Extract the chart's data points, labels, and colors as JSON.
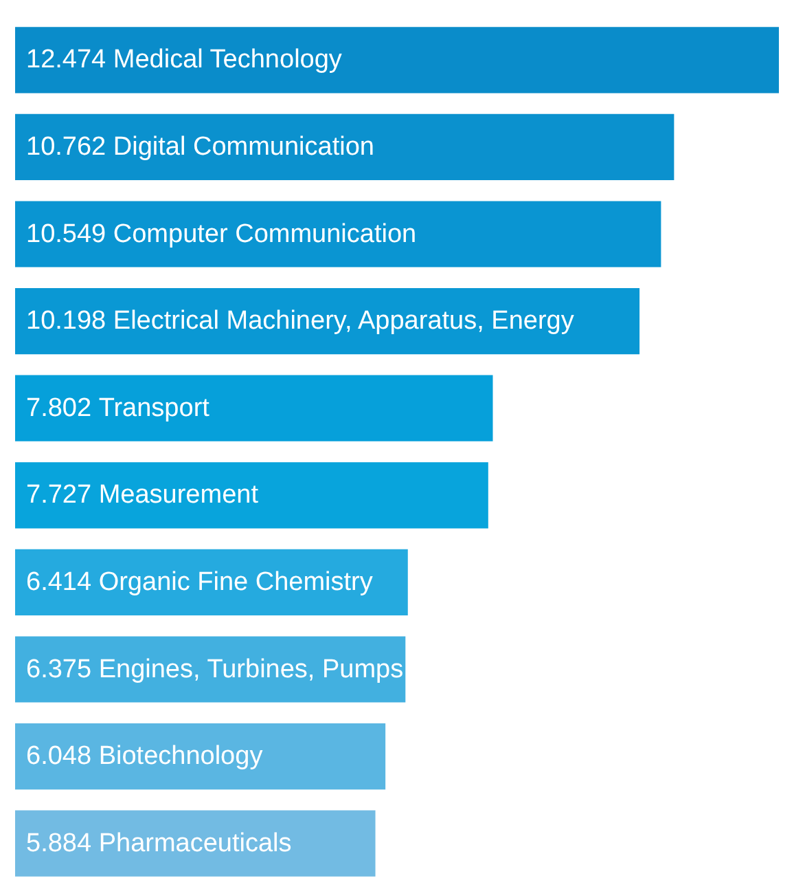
{
  "chart_data": {
    "type": "bar",
    "orientation": "horizontal",
    "data_labels": true,
    "tick_labels": false,
    "categories": [
      "Medical Technology",
      "Digital Communication",
      "Computer Communication",
      "Electrical Machinery, Apparatus, Energy",
      "Transport",
      "Measurement",
      "Organic Fine Chemistry",
      "Engines, Turbines, Pumps",
      "Biotechnology",
      "Pharmaceuticals"
    ],
    "values": [
      12.474,
      10.762,
      10.549,
      10.198,
      7.802,
      7.727,
      6.414,
      6.375,
      6.048,
      5.884
    ],
    "colors": [
      "#0a8cca",
      "#0b91ce",
      "#0a95d2",
      "#0a98d4",
      "#06a0da",
      "#08a4dc",
      "#25aadf",
      "#42b0e0",
      "#5ab6e2",
      "#72bbe3"
    ]
  }
}
